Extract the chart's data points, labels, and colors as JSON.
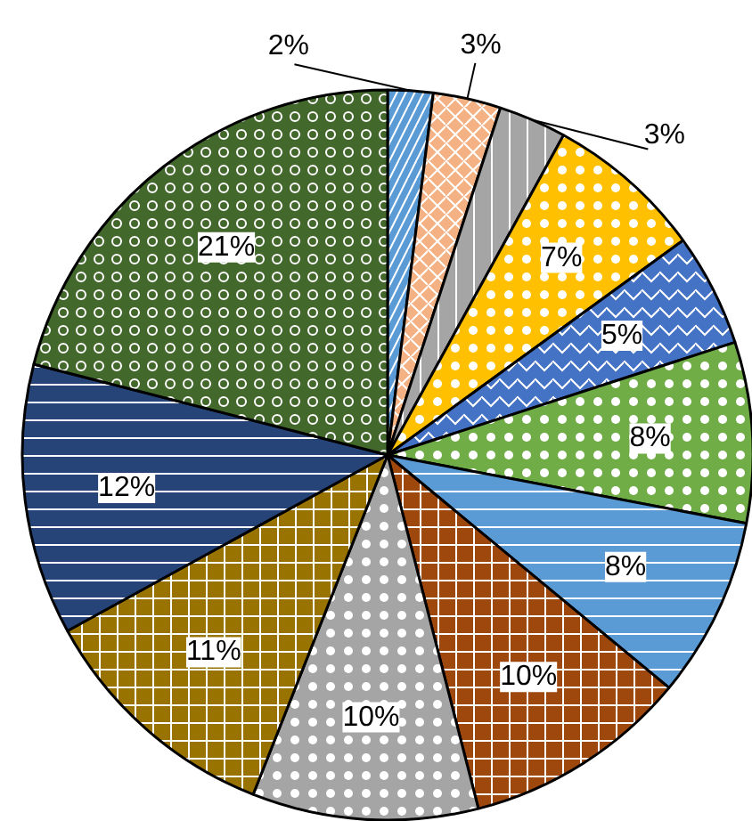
{
  "chart_data": {
    "type": "pie",
    "categories": [
      null,
      null,
      null,
      null,
      null,
      null,
      null,
      null,
      null,
      null,
      null,
      null
    ],
    "values": [
      2,
      3,
      3,
      7,
      5,
      8,
      8,
      10,
      10,
      11,
      12,
      21
    ],
    "colors": [
      "#5b9bd5",
      "#f4b183",
      "#a5a5a5",
      "#ffc000",
      "#4472c4",
      "#70ad47",
      "#5b9bd5",
      "#9e480e",
      "#a5a5a5",
      "#997300",
      "#264478",
      "#43682b"
    ],
    "value_labels": [
      "2%",
      "3%",
      "3%",
      "7%",
      "5%",
      "8%",
      "8%",
      "10%",
      "10%",
      "11%",
      "12%",
      "21%"
    ]
  }
}
